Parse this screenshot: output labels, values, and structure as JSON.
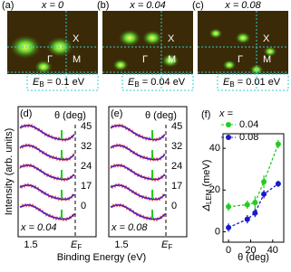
{
  "maps": [
    {
      "label": "(a)",
      "title": "x = 0",
      "points": [
        "X",
        "M",
        "Γ"
      ],
      "eb": {
        "symbol": "E",
        "sub": "B",
        "text": " = 0.1 eV"
      }
    },
    {
      "label": "(b)",
      "title": "x = 0.04",
      "points": [
        "X",
        "M",
        "Γ"
      ],
      "eb": {
        "symbol": "E",
        "sub": "B",
        "text": " = 0.04 eV"
      }
    },
    {
      "label": "(c)",
      "title": "x = 0.08",
      "points": [
        "X",
        "M",
        "Γ"
      ],
      "eb": {
        "symbol": "E",
        "sub": "B",
        "text": " = 0.01 eV"
      }
    }
  ],
  "edcs": [
    {
      "label": "(d)",
      "doping": "x = 0.04",
      "thetas": [
        "45",
        "32",
        "24",
        "17",
        "0"
      ]
    },
    {
      "label": "(e)",
      "doping": "x = 0.08",
      "thetas": [
        "45",
        "32",
        "24",
        "17",
        "0"
      ]
    }
  ],
  "edc_theta": "θ (deg)",
  "edc_ylabel": "Intensity (arb. units)",
  "edc_xlabel": "Binding Energy (eV)",
  "edc_xticks": [
    "1.5",
    {
      "symbol": "E",
      "sub": "F"
    }
  ],
  "chart_data": {
    "type": "line",
    "label": "(f)",
    "ylabel": {
      "symbol": "Δ",
      "sub": "LEM",
      "text": " (meV)"
    },
    "xlabel": "θ (deg)",
    "legend_title": "x =",
    "x": [
      0,
      17,
      24,
      32,
      45
    ],
    "series": [
      {
        "name": "0.04",
        "color": "#22cc22",
        "values": [
          12,
          13,
          14,
          24,
          42
        ],
        "errors": [
          2,
          2,
          3,
          3,
          2
        ]
      },
      {
        "name": "0.08",
        "color": "#1a1acc",
        "values": [
          2,
          6,
          9,
          18,
          23
        ],
        "errors": [
          2,
          2,
          2,
          2,
          1.5
        ]
      }
    ],
    "xlim": [
      -5,
      50
    ],
    "ylim": [
      -5,
      47
    ],
    "xticks": [
      0,
      20,
      40
    ],
    "yticks": [
      0,
      20,
      40
    ]
  }
}
